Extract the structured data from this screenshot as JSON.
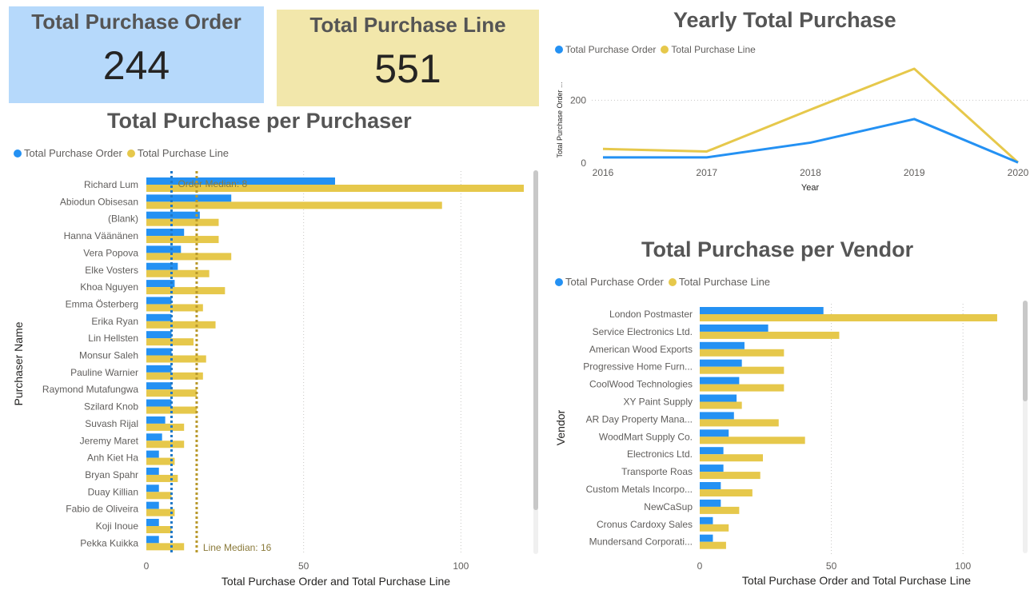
{
  "colors": {
    "order": "#2491f3",
    "line": "#e6c84b",
    "order_median": "#1f78c8",
    "line_median": "#b8982a"
  },
  "cards": [
    {
      "title": "Total Purchase Order",
      "value": "244"
    },
    {
      "title": "Total Purchase Line",
      "value": "551"
    }
  ],
  "legend": {
    "order_label": "Total Purchase Order",
    "line_label": "Total Purchase Line"
  },
  "chart_data": [
    {
      "id": "purchaser",
      "type": "bar",
      "orientation": "horizontal",
      "title": "Total Purchase per Purchaser",
      "ylabel": "Purchaser Name",
      "xlabel": "Total Purchase Order and Total Purchase Line",
      "xlim": [
        0,
        120
      ],
      "xticks": [
        0,
        50,
        100
      ],
      "legend_position": "top-left",
      "categories": [
        "Richard Lum",
        "Abiodun Obisesan",
        "(Blank)",
        "Hanna Väänänen",
        "Vera Popova",
        "Elke Vosters",
        "Khoa Nguyen",
        "Emma Österberg",
        "Erika Ryan",
        "Lin Hellsten",
        "Monsur Saleh",
        "Pauline Warnier",
        "Raymond Mutafungwa",
        "Szilard Knob",
        "Suvash Rijal",
        "Jeremy Maret",
        "Anh Kiet Ha",
        "Bryan Spahr",
        "Duay Killian",
        "Fabio de Oliveira",
        "Koji Inoue",
        "Pekka Kuikka"
      ],
      "series": [
        {
          "name": "Total Purchase Order",
          "values": [
            60,
            27,
            17,
            12,
            11,
            10,
            9,
            8,
            8,
            8,
            8,
            8,
            8,
            8,
            6,
            5,
            4,
            4,
            4,
            4,
            4,
            4
          ]
        },
        {
          "name": "Total Purchase Line",
          "values": [
            120,
            94,
            23,
            23,
            27,
            20,
            25,
            18,
            22,
            15,
            19,
            18,
            16,
            16,
            12,
            12,
            9,
            10,
            8,
            9,
            8,
            12
          ]
        }
      ],
      "reference_lines": [
        {
          "label": "Order Median: 8",
          "value": 8
        },
        {
          "label": "Line Median: 16",
          "value": 16
        }
      ]
    },
    {
      "id": "yearly",
      "type": "line",
      "title": "Yearly Total Purchase",
      "xlabel": "Year",
      "ylabel": "Total Purchase Order ...",
      "x": [
        "2016",
        "2017",
        "2018",
        "2019",
        "2020"
      ],
      "ylim": [
        0,
        300
      ],
      "yticks": [
        0,
        200
      ],
      "legend_position": "top-left",
      "series": [
        {
          "name": "Total Purchase Order",
          "values": [
            18,
            18,
            65,
            140,
            2
          ]
        },
        {
          "name": "Total Purchase Line",
          "values": [
            45,
            37,
            170,
            300,
            2
          ]
        }
      ]
    },
    {
      "id": "vendor",
      "type": "bar",
      "orientation": "horizontal",
      "title": "Total Purchase per Vendor",
      "ylabel": "Vendor",
      "xlabel": "Total Purchase Order and Total Purchase Line",
      "xlim": [
        0,
        120
      ],
      "xticks": [
        0,
        50,
        100
      ],
      "legend_position": "top-left",
      "categories": [
        "London Postmaster",
        "Service Electronics Ltd.",
        "American Wood Exports",
        "Progressive Home Furn...",
        "CoolWood Technologies",
        "XY Paint Supply",
        "AR Day Property Mana...",
        "WoodMart Supply Co.",
        "Electronics Ltd.",
        "Transporte Roas",
        "Custom Metals Incorpo...",
        "NewCaSup",
        "Cronus Cardoxy Sales",
        "Mundersand Corporati..."
      ],
      "series": [
        {
          "name": "Total Purchase Order",
          "values": [
            47,
            26,
            17,
            16,
            15,
            14,
            13,
            11,
            9,
            9,
            8,
            8,
            5,
            5
          ]
        },
        {
          "name": "Total Purchase Line",
          "values": [
            113,
            53,
            32,
            32,
            32,
            16,
            30,
            40,
            24,
            23,
            20,
            15,
            11,
            10
          ]
        }
      ]
    }
  ]
}
